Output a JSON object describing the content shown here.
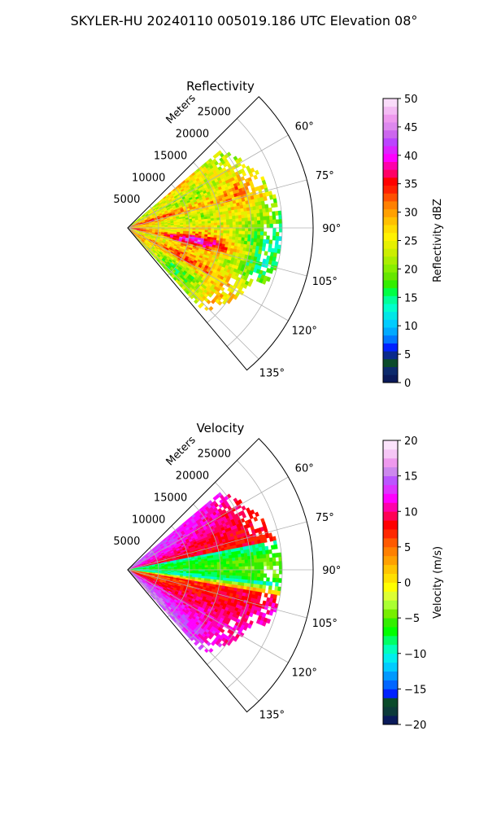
{
  "figure": {
    "suptitle": "SKYLER-HU  20240110  005019.186 UTC Elevation 08°"
  },
  "chart_data": [
    {
      "type": "heatmap",
      "subtype": "radar-ppi-sector",
      "title": "Reflectivity",
      "range_label": "Meters",
      "range_ticks": [
        5000,
        10000,
        15000,
        20000,
        25000
      ],
      "range_tick_labels": [
        "5000",
        "10000",
        "15000",
        "20000",
        "25000"
      ],
      "range_max": 30000,
      "data_extent_m": 25000,
      "azimuth_range_deg": [
        45,
        140
      ],
      "azimuth_ticks": [
        60,
        75,
        90,
        105,
        120,
        135
      ],
      "azimuth_tick_labels": [
        "60°",
        "75°",
        "90°",
        "105°",
        "120°",
        "135°"
      ],
      "grid": true,
      "colorbar": {
        "label": "Reflectivity dBZ",
        "min": 0,
        "max": 50,
        "ticks": [
          0,
          5,
          10,
          15,
          20,
          25,
          30,
          35,
          40,
          45,
          50
        ],
        "tick_labels": [
          "0",
          "5",
          "10",
          "15",
          "20",
          "25",
          "30",
          "35",
          "40",
          "45",
          "50"
        ]
      },
      "field_summary": {
        "dominant_range_dbz": [
          20,
          30
        ],
        "peak_bands_dbz": [
          35,
          40
        ],
        "peak_bands_azimuth_deg": [
          70,
          100,
          115
        ]
      }
    },
    {
      "type": "heatmap",
      "subtype": "radar-ppi-sector",
      "title": "Velocity",
      "range_label": "Meters",
      "range_ticks": [
        5000,
        10000,
        15000,
        20000,
        25000
      ],
      "range_tick_labels": [
        "5000",
        "10000",
        "15000",
        "20000",
        "25000"
      ],
      "range_max": 30000,
      "data_extent_m": 25000,
      "azimuth_range_deg": [
        45,
        140
      ],
      "azimuth_ticks": [
        60,
        75,
        90,
        105,
        120,
        135
      ],
      "azimuth_tick_labels": [
        "60°",
        "75°",
        "90°",
        "105°",
        "120°",
        "135°"
      ],
      "grid": true,
      "colorbar": {
        "label": "Velocity (m/s)",
        "min": -20,
        "max": 20,
        "ticks": [
          -20,
          -15,
          -10,
          -5,
          0,
          5,
          10,
          15,
          20
        ],
        "tick_labels": [
          "−20",
          "−15",
          "−10",
          "−5",
          "0",
          "5",
          "10",
          "15",
          "20"
        ]
      },
      "field_summary": {
        "north_sector_ms": [
          5,
          15
        ],
        "east_sector_ms": [
          -12,
          -8
        ],
        "south_sector_ms": [
          5,
          15
        ]
      }
    }
  ],
  "colors": {
    "reflectivity_scale": [
      "#0a1a5a",
      "#0c2a6b",
      "#0a4a2a",
      "#0a2a8c",
      "#0022ff",
      "#0077ff",
      "#00aaff",
      "#00ccff",
      "#00e6e6",
      "#00ffcc",
      "#00ff99",
      "#00ff44",
      "#33ee00",
      "#66e600",
      "#88ee00",
      "#aaee00",
      "#ccee00",
      "#e6f000",
      "#fff200",
      "#ffdc00",
      "#ffc000",
      "#ffa000",
      "#ff8000",
      "#ff5000",
      "#ff2000",
      "#ff0000",
      "#ff0066",
      "#ff00aa",
      "#ff00ff",
      "#dd22ff",
      "#bb44ff",
      "#cc66ee",
      "#dd88ee",
      "#ee99ee",
      "#f4bbf4",
      "#fadcfa"
    ],
    "velocity_scale": [
      "#0a1a5a",
      "#0c3a3a",
      "#0a4a2a",
      "#0022ff",
      "#0066ff",
      "#0099ff",
      "#00ccff",
      "#00eeee",
      "#00ffbb",
      "#00ff66",
      "#00ff00",
      "#33ee00",
      "#77ee00",
      "#aaff33",
      "#ddff33",
      "#ffff00",
      "#ffe000",
      "#ffc400",
      "#ffa000",
      "#ff8000",
      "#ff5a00",
      "#ff2800",
      "#ff0000",
      "#ff0055",
      "#ff00aa",
      "#ff00ff",
      "#dd33ff",
      "#bb55ff",
      "#cc88ee",
      "#ee99ee",
      "#f6c6f6",
      "#fbe3fb"
    ]
  }
}
